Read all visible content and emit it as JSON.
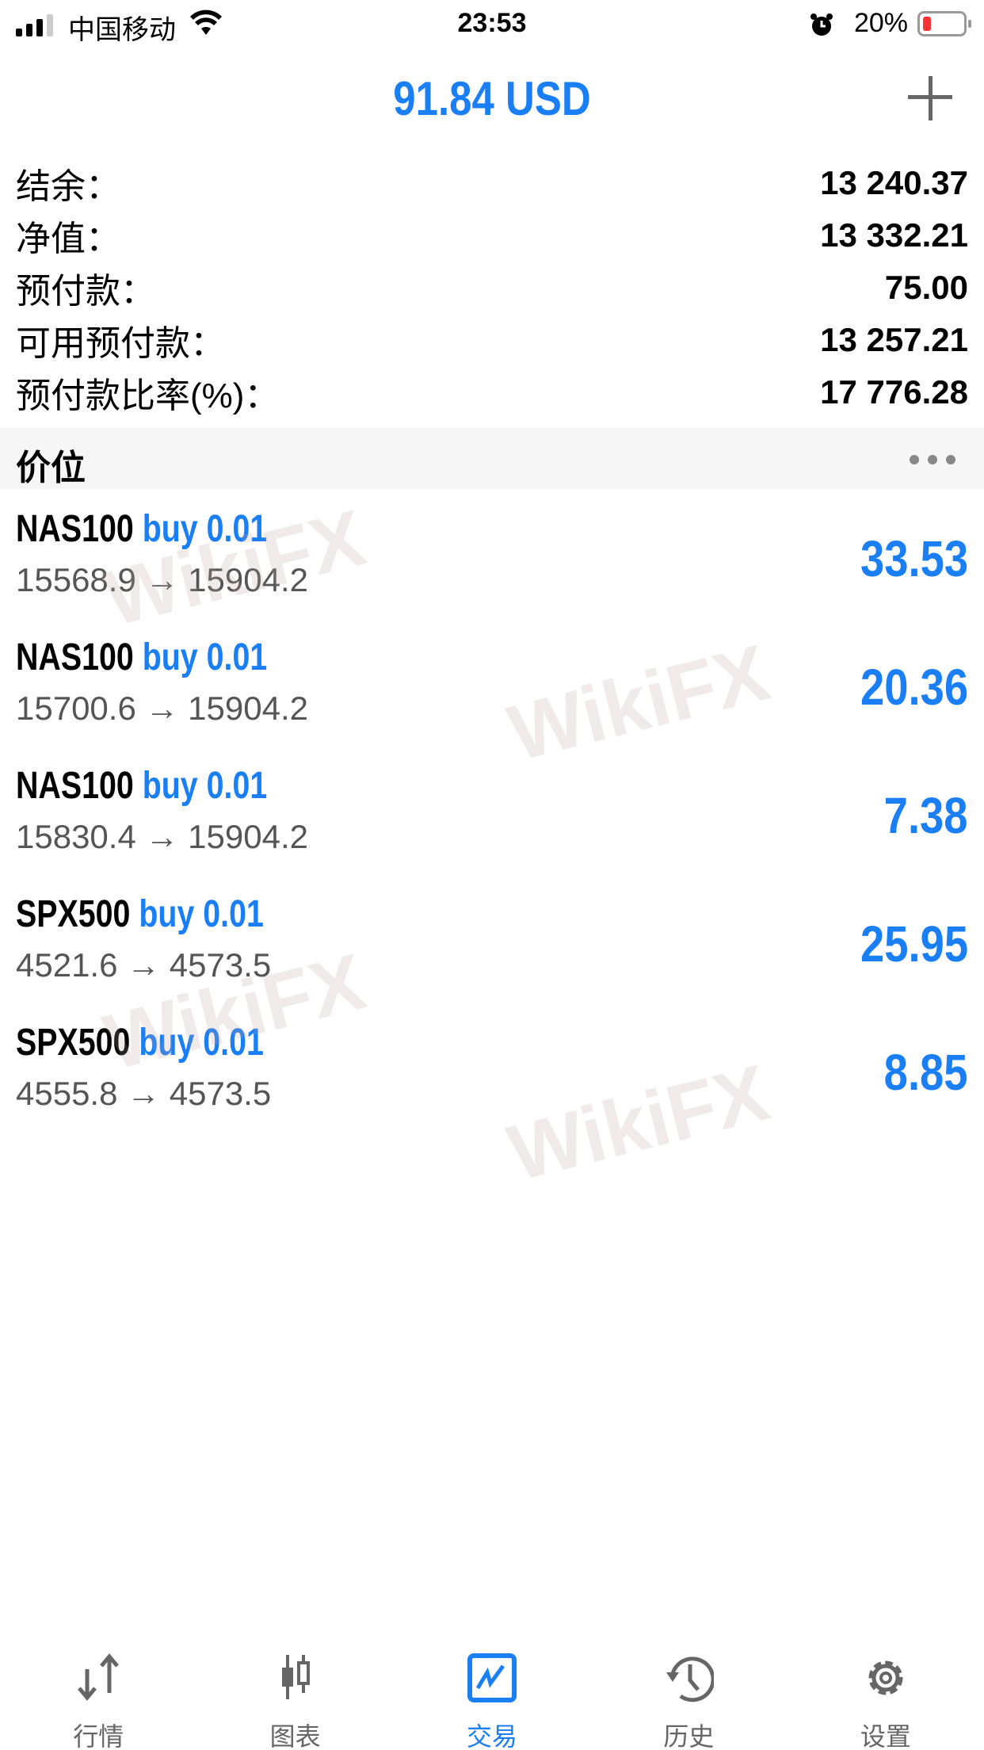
{
  "status_bar": {
    "carrier": "中国移动",
    "time": "23:53",
    "battery": "20%",
    "battery_level": 0.2
  },
  "header": {
    "title": "91.84 USD",
    "add_icon": "plus-icon"
  },
  "account": [
    {
      "label": "结余：",
      "value": "13 240.37"
    },
    {
      "label": "净值：",
      "value": "13 332.21"
    },
    {
      "label": "预付款：",
      "value": "75.00"
    },
    {
      "label": "可用预付款：",
      "value": "13 257.21"
    },
    {
      "label": "预付款比率(%)：",
      "value": "17 776.28"
    }
  ],
  "section": {
    "label": "价位",
    "more_icon": "more-dots-icon"
  },
  "positions": [
    {
      "symbol": "NAS100",
      "side": "buy 0.01",
      "prices": "15568.9 → 15904.2",
      "profit": "33.53"
    },
    {
      "symbol": "NAS100",
      "side": "buy 0.01",
      "prices": "15700.6 → 15904.2",
      "profit": "20.36"
    },
    {
      "symbol": "NAS100",
      "side": "buy 0.01",
      "prices": "15830.4 → 15904.2",
      "profit": "7.38"
    },
    {
      "symbol": "SPX500",
      "side": "buy 0.01",
      "prices": "4521.6 → 4573.5",
      "profit": "25.95"
    },
    {
      "symbol": "SPX500",
      "side": "buy 0.01",
      "prices": "4555.8 → 4573.5",
      "profit": "8.85"
    }
  ],
  "watermark": "WikiFX",
  "tabs": [
    {
      "label": "行情",
      "icon": "quotes-arrows-icon"
    },
    {
      "label": "图表",
      "icon": "candlestick-chart-icon"
    },
    {
      "label": "交易",
      "icon": "trade-chart-icon",
      "active": true
    },
    {
      "label": "历史",
      "icon": "history-clock-icon"
    },
    {
      "label": "设置",
      "icon": "gear-icon"
    }
  ],
  "colors": {
    "accent": "#1a7ef5",
    "inactive": "#666666"
  }
}
